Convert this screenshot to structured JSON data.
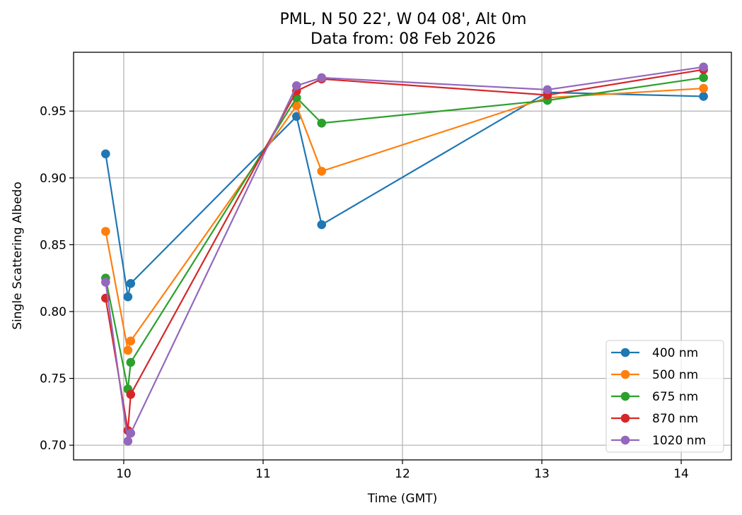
{
  "chart_data": {
    "type": "line",
    "title": "PML, N 50 22', W 04 08', Alt 0m",
    "subtitle": "Data from: 08 Feb 2026",
    "xlabel": "Time (GMT)",
    "ylabel": "Single Scattering Albedo",
    "xlim": [
      9.64,
      14.36
    ],
    "ylim": [
      0.689,
      0.994
    ],
    "xticks": [
      10,
      11,
      12,
      13,
      14
    ],
    "xtick_labels": [
      "10",
      "11",
      "12",
      "13",
      "14"
    ],
    "yticks": [
      0.7,
      0.75,
      0.8,
      0.85,
      0.9,
      0.95
    ],
    "ytick_labels": [
      "0.70",
      "0.75",
      "0.80",
      "0.85",
      "0.90",
      "0.95"
    ],
    "grid": true,
    "legend_position": "lower-right",
    "x": [
      9.87,
      10.03,
      10.05,
      11.24,
      11.42,
      13.04,
      14.16
    ],
    "series": [
      {
        "name": "400 nm",
        "color": "#1f77b4",
        "values": [
          0.918,
          0.811,
          0.821,
          0.946,
          0.865,
          0.964,
          0.961
        ]
      },
      {
        "name": "500 nm",
        "color": "#ff7f0e",
        "values": [
          0.86,
          0.771,
          0.778,
          0.954,
          0.905,
          0.96,
          0.967
        ]
      },
      {
        "name": "675 nm",
        "color": "#2ca02c",
        "values": [
          0.825,
          0.742,
          0.762,
          0.96,
          0.941,
          0.958,
          0.975
        ]
      },
      {
        "name": "870 nm",
        "color": "#d62728",
        "values": [
          0.81,
          0.711,
          0.738,
          0.965,
          0.974,
          0.962,
          0.981
        ]
      },
      {
        "name": "1020 nm",
        "color": "#9467bd",
        "values": [
          0.822,
          0.703,
          0.709,
          0.969,
          0.975,
          0.966,
          0.983
        ]
      }
    ]
  }
}
